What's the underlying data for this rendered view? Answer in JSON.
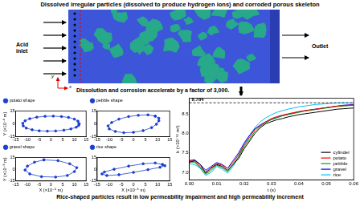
{
  "header": {
    "title": "Dissolved irregular particles (dissolved to produce hydrogen ions) and corroded porous skeleton"
  },
  "diagram": {
    "inlet_label": "Acid inlet",
    "outlet_label": "Outlet",
    "x_axis_label": "x",
    "y_axis_label": "y"
  },
  "arrow_text": "Dissolution and corrosion accelerate by a factor of 3,000.",
  "caption": "Rice-shaped particles result in low permeability impairment and high permeability increment",
  "chart_data": [
    {
      "type": "scatter",
      "ylabel": "Y (×10⁻⁶ m)",
      "xlim": [
        -15,
        15
      ],
      "ylim": [
        -15,
        15
      ],
      "xticks": [
        -15,
        -10,
        -5,
        0,
        5,
        10,
        15
      ],
      "yticks": [
        -15,
        0,
        15
      ],
      "grid": false,
      "legend": "top",
      "series": [
        {
          "name": "potato shape",
          "color": "#1a3fd1",
          "marker": "circle",
          "line_style": "solid",
          "x": [
            12,
            11.5,
            10,
            7.5,
            4.5,
            1,
            -2.5,
            -6,
            -9,
            -11,
            -12,
            -11.8,
            -10.5,
            -8,
            -5,
            -1.5,
            2,
            5.5,
            8.5,
            10.8,
            11.8,
            12
          ],
          "y": [
            0,
            3,
            5.5,
            7.5,
            8.5,
            9,
            8.8,
            7.8,
            6,
            3.5,
            0.5,
            -2.5,
            -5,
            -7,
            -8.2,
            -8.6,
            -8.4,
            -7.5,
            -6,
            -4,
            -2,
            0
          ]
        }
      ]
    },
    {
      "type": "scatter",
      "xlim": [
        -15,
        15
      ],
      "ylim": [
        -15,
        15
      ],
      "xticks": [
        -15,
        -10,
        -5,
        0,
        5,
        10,
        15
      ],
      "yticks": [
        -15,
        0,
        15
      ],
      "grid": false,
      "legend": "top",
      "series": [
        {
          "name": "pebble shape",
          "color": "#1a3fd1",
          "marker": "circle",
          "line_style": "solid",
          "x": [
            9,
            6,
            2,
            -2,
            -6,
            -9,
            -10.5,
            -10,
            -7.5,
            -4,
            0,
            4,
            7.5,
            9.5,
            10.5,
            10.5,
            9
          ],
          "y": [
            9,
            10.5,
            10,
            8.5,
            5.5,
            1.5,
            -2.5,
            -6,
            -9,
            -10.5,
            -10,
            -8,
            -4.5,
            -0.5,
            3.5,
            6.5,
            9
          ]
        }
      ]
    },
    {
      "type": "scatter",
      "xlabel": "X (×10⁻⁶ m)",
      "ylabel": "Y (×10⁻⁶ m)",
      "xlim": [
        -15,
        15
      ],
      "ylim": [
        -15,
        15
      ],
      "xticks": [
        -15,
        -10,
        -5,
        0,
        5,
        10,
        15
      ],
      "yticks": [
        -15,
        0,
        15
      ],
      "grid": false,
      "legend": "top",
      "series": [
        {
          "name": "gravel shape",
          "color": "#1a3fd1",
          "marker": "circle",
          "line_style": "solid",
          "x": [
            -3,
            3,
            8,
            11,
            10,
            7,
            2,
            -4,
            -9,
            -11,
            -10,
            -7,
            -3
          ],
          "y": [
            12,
            11,
            7,
            2,
            -3,
            -8,
            -10,
            -9.5,
            -6,
            -1,
            4,
            9,
            12
          ]
        }
      ]
    },
    {
      "type": "scatter",
      "xlabel": "X (×10⁻⁶ m)",
      "xlim": [
        -15,
        15
      ],
      "ylim": [
        -15,
        15
      ],
      "xticks": [
        -15,
        -10,
        -5,
        0,
        5,
        10,
        15
      ],
      "yticks": [
        -15,
        0,
        15
      ],
      "grid": false,
      "legend": "top",
      "series": [
        {
          "name": "rice shape",
          "color": "#1a3fd1",
          "marker": "circle",
          "line_style": "solid",
          "x": [
            12,
            9,
            4,
            -2,
            -8,
            -12,
            -13,
            -11,
            -6,
            0,
            6,
            11,
            13,
            12
          ],
          "y": [
            6,
            8,
            7,
            4,
            0,
            -3.5,
            -6,
            -8,
            -7,
            -4,
            -0.5,
            2.5,
            4.5,
            6
          ]
        }
      ]
    },
    {
      "type": "line",
      "xlabel": "t (s)",
      "ylabel": "k (×10⁻¹² m²)",
      "xlim": [
        0,
        0.06
      ],
      "xticks": [
        {
          "value": 0,
          "label": "0.00"
        },
        0.01,
        0.02,
        0.03,
        0.04,
        0.05,
        0.06
      ],
      "ylim": [
        6.8,
        8.9
      ],
      "yticks": [
        {
          "value": 7,
          "label": "7.0"
        },
        7.5,
        {
          "value": 8,
          "label": "8.0"
        },
        8.5
      ],
      "grid": false,
      "legend": "lower right",
      "annotations": [
        {
          "value": 8.784,
          "label": "8.784",
          "line_style": "dashed"
        }
      ],
      "x": [
        0,
        0.002,
        0.004,
        0.006,
        0.008,
        0.01,
        0.012,
        0.014,
        0.016,
        0.018,
        0.02,
        0.022,
        0.024,
        0.026,
        0.028,
        0.03,
        0.032,
        0.034,
        0.036,
        0.038,
        0.04,
        0.042,
        0.044,
        0.046,
        0.048,
        0.05,
        0.052,
        0.054,
        0.056,
        0.058,
        0.06
      ],
      "series": [
        {
          "name": "cylinder",
          "color": "#000000",
          "line_style": "solid",
          "values": [
            7.25,
            7.3,
            7.2,
            6.98,
            7.1,
            7.2,
            7.15,
            7.05,
            7.2,
            7.35,
            7.6,
            7.8,
            8.0,
            8.15,
            8.25,
            8.3,
            8.35,
            8.38,
            8.42,
            8.45,
            8.48,
            8.5,
            8.52,
            8.54,
            8.56,
            8.58,
            8.6,
            8.62,
            8.63,
            8.64,
            8.65
          ]
        },
        {
          "name": "potato",
          "color": "#ff0000",
          "line_style": "solid",
          "values": [
            7.3,
            7.28,
            7.15,
            7.0,
            7.12,
            7.22,
            7.18,
            7.1,
            7.25,
            7.45,
            7.7,
            7.9,
            8.1,
            8.2,
            8.3,
            8.38,
            8.43,
            8.47,
            8.5,
            8.53,
            8.56,
            8.58,
            8.6,
            8.62,
            8.64,
            8.66,
            8.68,
            8.7,
            8.71,
            8.72,
            8.73
          ]
        },
        {
          "name": "pebble",
          "color": "#00a000",
          "line_style": "solid",
          "values": [
            7.28,
            7.25,
            7.12,
            6.95,
            7.05,
            7.18,
            7.12,
            7.02,
            7.2,
            7.4,
            7.65,
            7.85,
            8.05,
            8.18,
            8.28,
            8.35,
            8.4,
            8.45,
            8.48,
            8.51,
            8.54,
            8.57,
            8.59,
            8.61,
            8.63,
            8.65,
            8.67,
            8.69,
            8.7,
            8.71,
            8.72
          ]
        },
        {
          "name": "gravel",
          "color": "#0000ff",
          "line_style": "solid",
          "values": [
            7.3,
            7.32,
            7.2,
            7.05,
            7.15,
            7.25,
            7.2,
            7.1,
            7.3,
            7.5,
            7.75,
            7.95,
            8.12,
            8.22,
            8.3,
            8.36,
            8.41,
            8.45,
            8.49,
            8.52,
            8.55,
            8.58,
            8.6,
            8.62,
            8.64,
            8.66,
            8.68,
            8.7,
            8.72,
            8.73,
            8.74
          ]
        },
        {
          "name": "rice",
          "color": "#00bfff",
          "line_style": "solid",
          "values": [
            7.22,
            7.2,
            7.1,
            6.92,
            7.0,
            7.15,
            7.08,
            6.98,
            7.15,
            7.4,
            7.7,
            7.95,
            8.15,
            8.3,
            8.4,
            8.48,
            8.54,
            8.58,
            8.62,
            8.65,
            8.68,
            8.7,
            8.72,
            8.74,
            8.75,
            8.76,
            8.77,
            8.78,
            8.784,
            8.78,
            8.78
          ]
        }
      ]
    }
  ]
}
